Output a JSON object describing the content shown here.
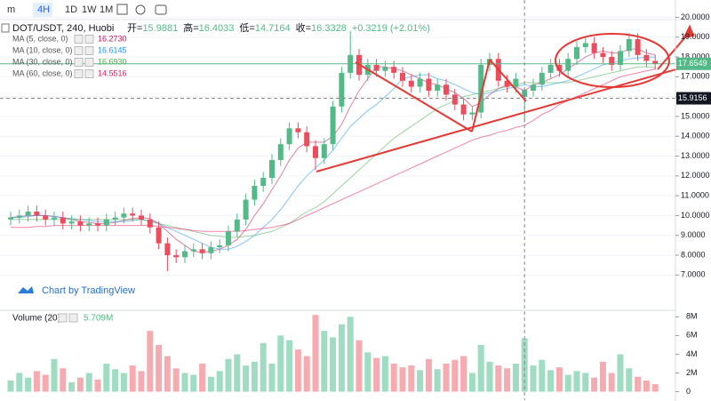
{
  "toolbar": {
    "intervals": [
      "m",
      "4H",
      "1D",
      "1W",
      "1M"
    ]
  },
  "chart_data": {
    "type": "candlestick",
    "title": "DOT/USDT, 240, Huobi",
    "ohlc_labels": [
      "开=",
      "高=",
      "低=",
      "收="
    ],
    "change": "+0.3219 (+2.01%)",
    "watermark": "Chart by TradingView",
    "up_color": "#53b987",
    "down_color": "#eb4d5c",
    "grid": true,
    "ylim": [
      5.4,
      20.2
    ],
    "yticks": [
      {
        "value": 7,
        "label": "7.0000"
      },
      {
        "value": 8,
        "label": "8.0000"
      },
      {
        "value": 9,
        "label": "9.0000"
      },
      {
        "value": 10,
        "label": "10.0000"
      },
      {
        "value": 11,
        "label": "11.0000"
      },
      {
        "value": 12,
        "label": "12.0000"
      },
      {
        "value": 13,
        "label": "13.0000"
      },
      {
        "value": 14,
        "label": "14.0000"
      },
      {
        "value": 15,
        "label": "15.0000"
      },
      {
        "value": 16,
        "label": "16.0000"
      },
      {
        "value": 17,
        "label": "17.0000"
      },
      {
        "value": 18,
        "label": "18.0000"
      },
      {
        "value": 19,
        "label": "19.0000"
      },
      {
        "value": 20,
        "label": "20.0000"
      }
    ],
    "crosshair_price": 15.9156,
    "open": [
      9.8,
      9.9,
      10.0,
      10.2,
      10.0,
      9.8,
      9.9,
      9.6,
      9.7,
      9.5,
      9.6,
      9.5,
      9.8,
      9.9,
      10.1,
      10.0,
      9.8,
      9.4,
      8.6,
      8.0,
      7.9,
      8.2,
      8.3,
      8.1,
      8.4,
      8.5,
      9.2,
      9.8,
      10.8,
      11.5,
      11.9,
      12.8,
      13.6,
      14.4,
      14.2,
      13.5,
      12.9,
      13.6,
      15.5,
      17.2,
      18.1,
      17.1,
      17.6,
      17.3,
      17.5,
      17.2,
      16.8,
      16.5,
      16.9,
      16.3,
      16.6,
      16.1,
      15.6,
      15.1,
      15.2,
      17.6,
      17.9,
      16.8,
      16.5,
      15.9881,
      16.3,
      16.6,
      17.2,
      17.6,
      17.3,
      17.9,
      18.5,
      18.7,
      18.2,
      18.0,
      17.6,
      18.3,
      18.9,
      18.1,
      17.8
    ],
    "high": [
      10.2,
      10.3,
      10.5,
      10.5,
      10.3,
      10.2,
      10.2,
      10.0,
      10.0,
      9.9,
      9.9,
      10.1,
      10.2,
      10.4,
      10.4,
      10.3,
      10.1,
      9.7,
      8.9,
      8.3,
      8.5,
      8.6,
      8.6,
      8.7,
      8.8,
      9.5,
      10.1,
      11.1,
      11.8,
      12.2,
      13.1,
      13.9,
      14.7,
      14.7,
      14.5,
      13.8,
      13.9,
      15.8,
      17.5,
      19.3,
      18.4,
      17.9,
      17.9,
      17.8,
      17.8,
      17.5,
      17.1,
      17.2,
      17.2,
      16.9,
      16.9,
      16.4,
      15.9,
      15.5,
      17.9,
      18.2,
      18.2,
      17.1,
      17.2,
      16.4033,
      16.9,
      17.5,
      17.9,
      17.9,
      18.2,
      18.8,
      19.0,
      19.0,
      18.5,
      18.3,
      18.6,
      19.2,
      19.2,
      18.4,
      18.1
    ],
    "low": [
      9.5,
      9.6,
      9.7,
      9.7,
      9.5,
      9.5,
      9.3,
      9.3,
      9.2,
      9.2,
      9.2,
      9.2,
      9.5,
      9.6,
      9.7,
      9.5,
      9.1,
      8.3,
      7.2,
      7.6,
      7.6,
      7.9,
      7.8,
      7.8,
      8.1,
      8.2,
      8.9,
      9.5,
      10.5,
      11.2,
      11.6,
      12.5,
      13.3,
      13.9,
      13.2,
      12.3,
      12.6,
      13.3,
      15.2,
      16.9,
      16.8,
      16.8,
      17.0,
      17.0,
      16.9,
      16.5,
      16.2,
      16.2,
      16.0,
      16.0,
      15.8,
      15.3,
      14.8,
      14.8,
      14.9,
      17.3,
      16.5,
      16.2,
      16.2,
      14.7164,
      16.0,
      16.3,
      16.9,
      17.0,
      17.0,
      17.6,
      18.2,
      17.9,
      17.7,
      17.3,
      17.3,
      18.0,
      17.8,
      17.5,
      17.35
    ],
    "close": [
      9.9,
      10.0,
      10.2,
      10.0,
      9.8,
      9.9,
      9.6,
      9.7,
      9.5,
      9.6,
      9.5,
      9.8,
      9.9,
      10.1,
      10.0,
      9.8,
      9.4,
      8.6,
      8.0,
      7.9,
      8.2,
      8.3,
      8.1,
      8.4,
      8.5,
      9.2,
      9.8,
      10.8,
      11.5,
      11.9,
      12.8,
      13.6,
      14.4,
      14.2,
      13.5,
      12.9,
      13.6,
      15.5,
      17.2,
      18.1,
      17.1,
      17.6,
      17.3,
      17.5,
      17.2,
      16.8,
      16.5,
      16.9,
      16.3,
      16.6,
      16.1,
      15.6,
      15.1,
      15.2,
      17.6,
      17.9,
      16.8,
      16.5,
      16.9,
      16.3328,
      16.6,
      17.2,
      17.6,
      17.3,
      17.9,
      18.5,
      18.7,
      18.2,
      18.0,
      17.6,
      18.3,
      18.9,
      18.1,
      17.8,
      17.6549
    ],
    "ma": [
      {
        "name": "MA (5, close, 0)",
        "color": "#c2185b",
        "legend_value": {
          "value": 16.273,
          "label": "16.2730"
        },
        "values": [
          9.9,
          9.95,
          10.0,
          10.0,
          10.0,
          9.95,
          9.9,
          9.8,
          9.7,
          9.65,
          9.6,
          9.6,
          9.65,
          9.75,
          9.85,
          9.9,
          9.85,
          9.6,
          9.2,
          8.8,
          8.5,
          8.2,
          8.15,
          8.2,
          8.3,
          8.5,
          8.8,
          9.3,
          10.0,
          10.6,
          11.3,
          12.0,
          12.8,
          13.4,
          13.7,
          13.7,
          13.7,
          14.0,
          14.6,
          15.5,
          16.3,
          16.9,
          17.5,
          17.5,
          17.4,
          17.3,
          17.1,
          16.9,
          16.7,
          16.6,
          16.4,
          16.2,
          15.9,
          15.5,
          15.7,
          16.1,
          16.4,
          16.6,
          16.5,
          16.3,
          16.6,
          16.7,
          16.9,
          17.1,
          17.4,
          17.7,
          18.0,
          18.2,
          18.3,
          18.2,
          18.2,
          18.4,
          18.4,
          18.2,
          18.1
        ]
      },
      {
        "name": "MA (10, close, 0)",
        "color": "#2196f3",
        "legend_value": {
          "value": 16.6145,
          "label": "16.6145"
        },
        "values": [
          9.9,
          9.9,
          9.95,
          10.0,
          10.0,
          9.95,
          9.9,
          9.85,
          9.8,
          9.75,
          9.7,
          9.7,
          9.7,
          9.7,
          9.75,
          9.8,
          9.75,
          9.6,
          9.4,
          9.2,
          9.0,
          8.8,
          8.6,
          8.4,
          8.3,
          8.3,
          8.45,
          8.7,
          9.0,
          9.4,
          9.8,
          10.3,
          10.9,
          11.5,
          12.0,
          12.4,
          12.8,
          13.3,
          13.9,
          14.5,
          14.9,
          15.3,
          15.6,
          16.0,
          16.4,
          16.9,
          17.0,
          17.1,
          17.1,
          16.9,
          16.8,
          16.6,
          16.4,
          16.2,
          16.1,
          16.2,
          16.3,
          16.4,
          16.5,
          16.6,
          16.5,
          16.5,
          16.6,
          16.7,
          16.8,
          17.0,
          17.2,
          17.4,
          17.6,
          17.7,
          17.8,
          17.9,
          17.95,
          18.0,
          18.0
        ]
      },
      {
        "name": "MA (30, close, 0)",
        "color": "#4caf50",
        "legend_value": {
          "value": 16.693,
          "label": "16.6930"
        },
        "values": [
          9.8,
          9.8,
          9.8,
          9.8,
          9.8,
          9.8,
          9.8,
          9.8,
          9.8,
          9.8,
          9.8,
          9.8,
          9.8,
          9.8,
          9.8,
          9.8,
          9.7,
          9.6,
          9.5,
          9.4,
          9.3,
          9.2,
          9.1,
          9.0,
          8.95,
          8.9,
          8.9,
          8.95,
          9.0,
          9.1,
          9.2,
          9.4,
          9.6,
          9.9,
          10.2,
          10.4,
          10.7,
          11.1,
          11.5,
          11.9,
          12.3,
          12.7,
          13.1,
          13.5,
          13.9,
          14.2,
          14.5,
          14.8,
          15.1,
          15.4,
          15.6,
          15.8,
          16.0,
          16.1,
          16.2,
          16.3,
          16.4,
          16.5,
          16.6,
          16.7,
          16.7,
          16.7,
          16.7,
          16.7,
          16.7,
          16.8,
          16.9,
          17.0,
          17.1,
          17.2,
          17.3,
          17.4,
          17.5,
          17.5,
          17.5
        ]
      },
      {
        "name": "MA (60, close, 0)",
        "color": "#e91e63",
        "legend_value": {
          "value": 14.5516,
          "label": "14.5516"
        },
        "values": [
          9.4,
          9.4,
          9.4,
          9.45,
          9.45,
          9.5,
          9.5,
          9.5,
          9.5,
          9.5,
          9.5,
          9.5,
          9.5,
          9.5,
          9.5,
          9.5,
          9.5,
          9.45,
          9.4,
          9.35,
          9.3,
          9.25,
          9.2,
          9.2,
          9.2,
          9.2,
          9.2,
          9.25,
          9.3,
          9.35,
          9.4,
          9.5,
          9.6,
          9.8,
          10.0,
          10.2,
          10.4,
          10.6,
          10.8,
          11.0,
          11.2,
          11.4,
          11.6,
          11.8,
          12.0,
          12.2,
          12.4,
          12.6,
          12.8,
          13.0,
          13.2,
          13.4,
          13.6,
          13.8,
          13.95,
          14.05,
          14.2,
          14.3,
          14.45,
          14.55,
          14.8,
          15.1,
          15.3,
          15.6,
          15.8,
          16.0,
          16.2,
          16.4,
          16.6,
          16.8,
          17.0,
          17.1,
          17.2,
          17.3,
          17.4
        ]
      }
    ],
    "volume": {
      "type": "bar",
      "name": "Volume (20)",
      "ylim": [
        -900000,
        8600000
      ],
      "yticks": [
        0,
        {
          "value": 2000000,
          "label": "2M"
        },
        {
          "value": 4000000,
          "label": "4M"
        },
        {
          "value": 6000000,
          "label": "6M"
        },
        {
          "value": 8000000,
          "label": "8M"
        }
      ],
      "values": [
        1200000,
        2000000,
        1500000,
        2200000,
        1800000,
        3500000,
        2500000,
        1000000,
        1500000,
        2000000,
        1300000,
        3000000,
        2400000,
        2000000,
        2800000,
        2200000,
        6500000,
        5000000,
        3800000,
        2500000,
        2000000,
        1800000,
        3000000,
        1600000,
        2200000,
        3500000,
        4000000,
        2800000,
        3200000,
        5200000,
        3000000,
        6000000,
        5500000,
        4500000,
        3800000,
        8200000,
        6500000,
        5800000,
        7200000,
        8000000,
        5500000,
        4200000,
        3600000,
        3800000,
        3000000,
        2600000,
        2800000,
        2300000,
        3500000,
        2400000,
        3000000,
        3400000,
        3800000,
        2000000,
        5000000,
        3200000,
        2800000,
        2500000,
        3000000,
        5709000,
        2800000,
        3400000,
        2300000,
        2600000,
        1800000,
        2200000,
        2000000,
        1500000,
        3200000,
        2000000,
        4000000,
        2500000,
        1600000,
        1200000,
        800000
      ],
      "value_labels": [
        null,
        null,
        null,
        null,
        null,
        null,
        null,
        null,
        null,
        null,
        null,
        null,
        null,
        null,
        null,
        null,
        null,
        null,
        null,
        null,
        null,
        null,
        null,
        null,
        null,
        null,
        null,
        null,
        null,
        null,
        null,
        null,
        null,
        null,
        null,
        null,
        null,
        null,
        null,
        null,
        null,
        null,
        null,
        null,
        null,
        null,
        null,
        null,
        null,
        null,
        null,
        null,
        null,
        null,
        null,
        null,
        null,
        null,
        null,
        "5.709M",
        null,
        null,
        null,
        null,
        null,
        null,
        null,
        null,
        null,
        null,
        null,
        null,
        null,
        null,
        null
      ]
    }
  }
}
